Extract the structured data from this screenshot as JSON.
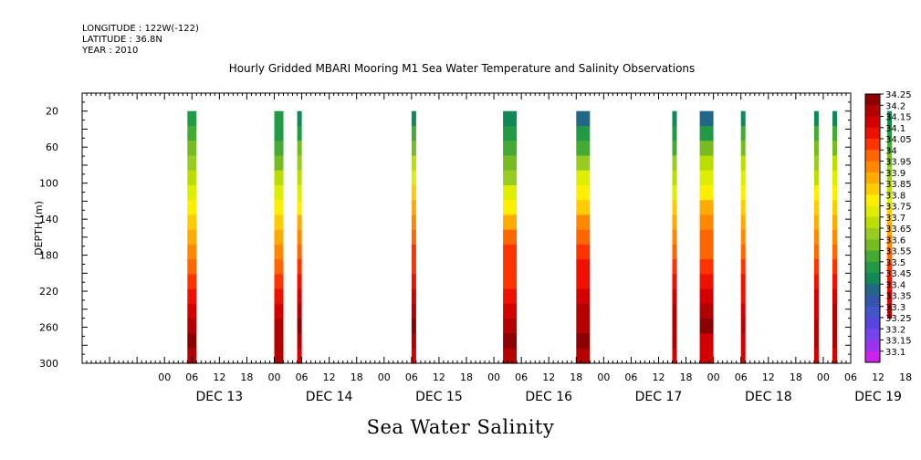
{
  "header": {
    "longitude": "LONGITUDE : 122W(-122)",
    "latitude": "LATITUDE : 36.8N",
    "year": "YEAR : 2010"
  },
  "chart_data": {
    "type": "heatmap",
    "title": "Hourly Gridded MBARI Mooring M1 Sea Water Temperature and Salinity Observations",
    "xlabel": "Sea Water Salinity",
    "ylabel": "DEPTH (m)",
    "y_unit": "m",
    "y_inverted": true,
    "ylim": [
      0,
      300
    ],
    "y_ticks": [
      20,
      60,
      100,
      140,
      180,
      220,
      260,
      300
    ],
    "x_unit": "hours since DEC 13 00:00",
    "xlim": [
      -18,
      150
    ],
    "x_hour_ticks": [
      "00",
      "06",
      "12",
      "18",
      "00",
      "06",
      "12",
      "18",
      "00",
      "06",
      "12",
      "18",
      "00",
      "06",
      "12",
      "18",
      "00",
      "06",
      "12",
      "18",
      "00",
      "06",
      "12",
      "18",
      "00",
      "06",
      "12",
      "18",
      "00",
      "06",
      "12",
      "18"
    ],
    "day_labels": [
      "DEC 13",
      "DEC 14",
      "DEC 15",
      "DEC 16",
      "DEC 17",
      "DEC 18",
      "DEC 19"
    ],
    "colorbar": {
      "levels": [
        "34.25",
        "34.2",
        "34.15",
        "34.1",
        "34.05",
        "34",
        "33.95",
        "33.9",
        "33.85",
        "33.8",
        "33.75",
        "33.7",
        "33.65",
        "33.6",
        "33.55",
        "33.5",
        "33.45",
        "33.4",
        "33.35",
        "33.3",
        "33.25",
        "33.2",
        "33.15",
        "33.1"
      ],
      "colors": [
        "#8b0000",
        "#b30000",
        "#d40000",
        "#ee1100",
        "#ff3300",
        "#ff6600",
        "#ff8800",
        "#ffaa00",
        "#ffcc00",
        "#ffee00",
        "#ddee00",
        "#bbdd00",
        "#99cc22",
        "#77bb22",
        "#44aa33",
        "#229944",
        "#118855",
        "#226688",
        "#3355aa",
        "#4455cc",
        "#5544dd",
        "#7744ee",
        "#9933ee",
        "#cc22ee"
      ]
    },
    "profiles": [
      {
        "time": "DEC 13 05:00",
        "t0": 5,
        "t1": 7,
        "zmax": 300,
        "values": [
          33.5,
          33.55,
          33.6,
          33.65,
          33.7,
          33.75,
          33.8,
          33.85,
          33.9,
          33.95,
          34.0,
          34.05,
          34.1,
          34.15,
          34.2,
          34.25,
          34.2
        ]
      },
      {
        "time": "DEC 14 00:00",
        "t0": 24,
        "t1": 26,
        "zmax": 300,
        "values": [
          33.5,
          33.52,
          33.58,
          33.63,
          33.7,
          33.75,
          33.8,
          33.86,
          33.92,
          33.98,
          34.03,
          34.08,
          34.12,
          34.17,
          34.22,
          34.22,
          34.2
        ]
      },
      {
        "time": "DEC 14 05:00",
        "t0": 29,
        "t1": 30,
        "zmax": 300,
        "values": [
          33.48,
          33.52,
          33.6,
          33.68,
          33.73,
          33.78,
          33.84,
          33.9,
          33.95,
          34.02,
          34.07,
          34.12,
          34.15,
          34.2,
          34.25,
          34.2,
          34.15
        ]
      },
      {
        "time": "DEC 15 06:00",
        "t0": 54,
        "t1": 55,
        "zmax": 300,
        "values": [
          33.48,
          33.55,
          33.62,
          33.7,
          33.78,
          33.85,
          33.9,
          33.95,
          34.0,
          34.05,
          34.08,
          34.12,
          34.15,
          34.2,
          34.25,
          34.2,
          34.15
        ]
      },
      {
        "time": "DEC 16 02:00",
        "t0": 74,
        "t1": 77,
        "zmax": 300,
        "values": [
          33.47,
          33.5,
          33.55,
          33.62,
          33.68,
          33.75,
          33.8,
          33.9,
          34.0,
          34.05,
          34.05,
          34.07,
          34.12,
          34.17,
          34.22,
          34.25,
          34.2
        ]
      },
      {
        "time": "DEC 16 18:00",
        "t0": 90,
        "t1": 93,
        "zmax": 300,
        "values": [
          33.42,
          33.5,
          33.58,
          33.66,
          33.75,
          33.82,
          33.88,
          33.95,
          34.0,
          34.05,
          34.1,
          34.13,
          34.17,
          34.2,
          34.23,
          34.25,
          34.2
        ]
      },
      {
        "time": "DEC 17 15:00",
        "t0": 111,
        "t1": 112,
        "zmax": 300,
        "values": [
          33.45,
          33.52,
          33.58,
          33.65,
          33.72,
          33.78,
          33.85,
          33.9,
          33.95,
          34.0,
          34.05,
          34.1,
          34.15,
          34.2,
          34.22,
          34.2,
          34.15
        ]
      },
      {
        "time": "DEC 17 21:00",
        "t0": 117,
        "t1": 120,
        "zmax": 300,
        "values": [
          33.43,
          33.53,
          33.62,
          33.7,
          33.78,
          33.83,
          33.9,
          33.95,
          34.0,
          34.03,
          34.05,
          34.1,
          34.15,
          34.2,
          34.25,
          34.18,
          34.15
        ]
      },
      {
        "time": "DEC 18 06:00",
        "t0": 126,
        "t1": 127,
        "zmax": 300,
        "values": [
          33.48,
          33.55,
          33.62,
          33.7,
          33.76,
          33.82,
          33.88,
          33.93,
          33.98,
          34.02,
          34.06,
          34.1,
          34.13,
          34.16,
          34.2,
          34.17,
          34.15
        ]
      },
      {
        "time": "DEC 18 22:00",
        "t0": 142,
        "t1": 143,
        "zmax": 300,
        "values": [
          33.48,
          33.55,
          33.62,
          33.68,
          33.74,
          33.8,
          33.86,
          33.9,
          33.95,
          34.0,
          34.05,
          34.1,
          34.15,
          34.18,
          34.22,
          34.2,
          34.18
        ]
      },
      {
        "time": "DEC 19 02:00",
        "t0": 146,
        "t1": 147,
        "zmax": 300,
        "values": [
          33.48,
          33.55,
          33.63,
          33.7,
          33.76,
          33.83,
          33.88,
          33.93,
          33.98,
          34.03,
          34.07,
          34.12,
          34.16,
          34.2,
          34.23,
          34.2,
          34.18
        ]
      },
      {
        "time": "DEC 19 14:00",
        "t0": 158,
        "t1": 159,
        "zmax": 250,
        "values": [
          33.45,
          33.5,
          33.55,
          33.62,
          33.68,
          33.73,
          33.78,
          33.85,
          33.9,
          33.95,
          34.0,
          34.05,
          34.1,
          34.15,
          34.2
        ]
      }
    ]
  }
}
